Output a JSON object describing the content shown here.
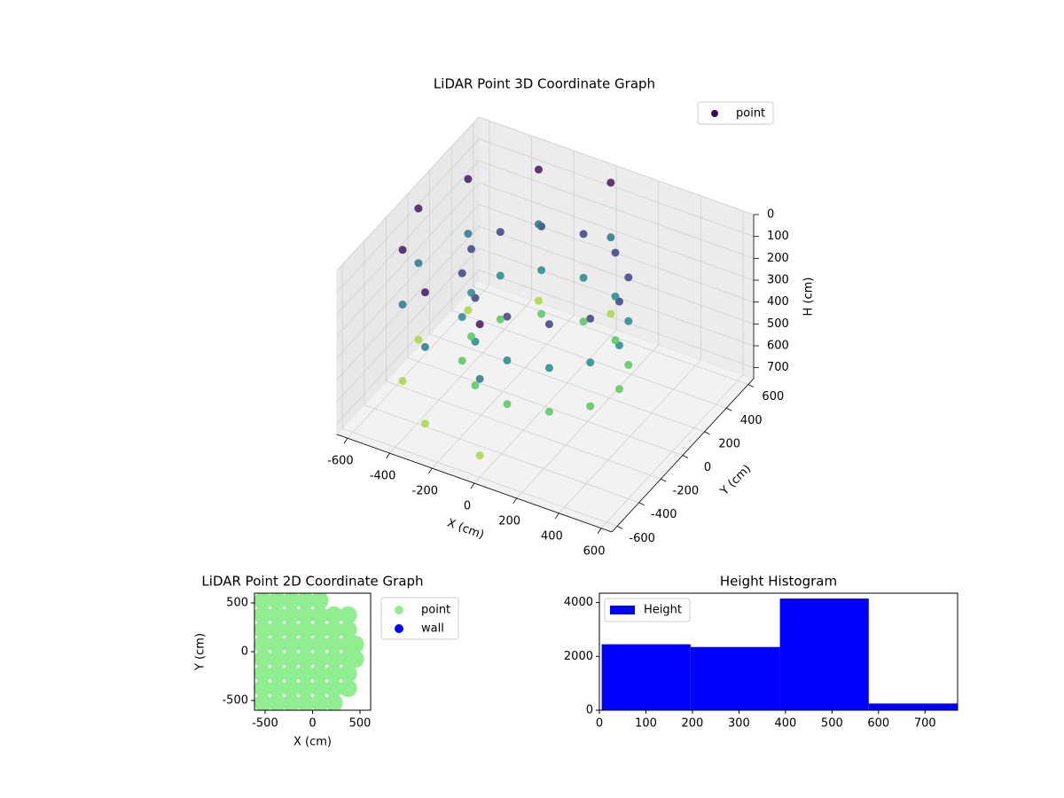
{
  "chart_data": [
    {
      "type": "scatter3d",
      "title": "LiDAR Point 3D Coordinate Graph",
      "xlabel": "X (cm)",
      "ylabel": "Y (cm)",
      "zlabel": "H (cm)",
      "xlim": [
        -650,
        650
      ],
      "ylim": [
        -650,
        650
      ],
      "zlim": [
        0,
        750
      ],
      "z_inverted": true,
      "xticks": [
        -600,
        -400,
        -200,
        0,
        200,
        400,
        600
      ],
      "yticks": [
        -600,
        -400,
        -200,
        0,
        200,
        400,
        600
      ],
      "zticks": [
        0,
        100,
        200,
        300,
        400,
        500,
        600,
        700
      ],
      "cmap": [
        "#440154",
        "#3b528b",
        "#21918c",
        "#5ec962",
        "#fde725"
      ],
      "clim": [
        0,
        750
      ],
      "legend": "upper right",
      "grid": true,
      "series": [
        {
          "name": "point",
          "x": [
            350,
            303,
            175,
            0,
            -175,
            -303,
            -350,
            -303,
            -175,
            0,
            175,
            303,
            350,
            303,
            175,
            0,
            -175,
            -303,
            -350,
            -303,
            -175,
            0,
            175,
            303,
            350,
            303,
            175,
            0,
            -175,
            -303,
            -350,
            -303,
            -175,
            0,
            175,
            303,
            0,
            -300,
            -520,
            -600,
            -520,
            -300,
            0,
            0,
            -300,
            -520,
            -600,
            -520,
            -300,
            0,
            0,
            -300,
            -520,
            -600,
            -520,
            -300,
            0
          ],
          "y": [
            0,
            175,
            303,
            350,
            303,
            175,
            0,
            -175,
            -303,
            -350,
            -303,
            -175,
            0,
            175,
            303,
            350,
            303,
            175,
            0,
            -175,
            -303,
            -350,
            -303,
            -175,
            0,
            175,
            303,
            350,
            303,
            175,
            0,
            -175,
            -303,
            -350,
            -303,
            -175,
            600,
            520,
            300,
            0,
            -300,
            -520,
            -600,
            600,
            520,
            300,
            0,
            -300,
            -520,
            -600,
            600,
            520,
            300,
            0,
            -300,
            -520,
            -600
          ],
          "h": [
            150,
            150,
            150,
            150,
            150,
            150,
            150,
            150,
            150,
            150,
            150,
            150,
            350,
            350,
            350,
            350,
            350,
            350,
            350,
            350,
            350,
            350,
            350,
            350,
            550,
            550,
            550,
            550,
            550,
            550,
            550,
            550,
            550,
            550,
            550,
            550,
            50,
            50,
            50,
            50,
            50,
            50,
            50,
            300,
            300,
            300,
            300,
            300,
            300,
            300,
            650,
            650,
            650,
            650,
            650,
            650,
            650
          ]
        }
      ]
    },
    {
      "type": "scatter",
      "title": "LiDAR Point 2D Coordinate Graph",
      "xlabel": "X (cm)",
      "ylabel": "Y (cm)",
      "xlim": [
        -612,
        612
      ],
      "ylim": [
        -600,
        600
      ],
      "xticks": [
        -500,
        0,
        500
      ],
      "yticks": [
        -500,
        0,
        500
      ],
      "legend": "outside right",
      "series": [
        {
          "name": "point",
          "color": "#90ee90",
          "x": [
            -525,
            -375,
            -225,
            -75,
            75,
            -525,
            -375,
            -225,
            -75,
            75,
            225,
            375,
            -525,
            -375,
            -225,
            -75,
            75,
            225,
            375,
            -525,
            -375,
            -225,
            -75,
            75,
            225,
            375,
            450,
            -525,
            -375,
            -225,
            -75,
            75,
            225,
            375,
            450,
            -525,
            -375,
            -225,
            -75,
            75,
            225,
            375,
            -525,
            -375,
            -225,
            -75,
            75,
            225,
            375,
            -525,
            -375,
            -225,
            -75,
            75,
            225
          ],
          "y": [
            525,
            525,
            525,
            525,
            525,
            375,
            375,
            375,
            375,
            375,
            375,
            375,
            225,
            225,
            225,
            225,
            225,
            225,
            225,
            75,
            75,
            75,
            75,
            75,
            75,
            75,
            75,
            -75,
            -75,
            -75,
            -75,
            -75,
            -75,
            -75,
            -75,
            -225,
            -225,
            -225,
            -225,
            -225,
            -225,
            -225,
            -375,
            -375,
            -375,
            -375,
            -375,
            -375,
            -375,
            -525,
            -525,
            -525,
            -525,
            -525,
            -525
          ]
        },
        {
          "name": "wall",
          "color": "#0000ff",
          "x": [],
          "y": []
        }
      ]
    },
    {
      "type": "histogram",
      "title": "Height Histogram",
      "xlim": [
        0,
        770
      ],
      "ylim": [
        0,
        4350
      ],
      "xticks": [
        0,
        100,
        200,
        300,
        400,
        500,
        600,
        700
      ],
      "yticks": [
        0,
        2000,
        4000
      ],
      "bins": [
        5,
        196,
        388,
        579,
        770
      ],
      "legend": "upper left",
      "series": [
        {
          "name": "Height",
          "color": "#0000ff",
          "values": [
            2450,
            2350,
            4150,
            250
          ]
        }
      ]
    }
  ]
}
